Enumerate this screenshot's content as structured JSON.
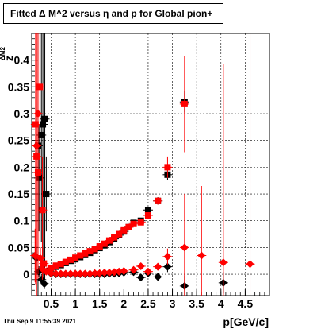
{
  "page": {
    "title": "Fitted Δ M^2 versus η and p for Global pion+",
    "timestamp": "Thu Sep  9 11:55:39 2021"
  },
  "chart_data": {
    "type": "scatter",
    "title": "Fitted Δ M^2 versus η and p for Global pion+",
    "xlabel": "p[GeV/c]",
    "ylabel": "z_{ΔM2}",
    "xlim": [
      0.1,
      5.0
    ],
    "ylim": [
      -0.04,
      0.45
    ],
    "grid": true,
    "x_ticks": [
      0.5,
      1,
      1.5,
      2,
      2.5,
      3,
      3.5,
      4,
      4.5
    ],
    "x_tick_labels": [
      "0.5",
      "1",
      "1.5",
      "2",
      "2.5",
      "3",
      "3.5",
      "4",
      "4.5"
    ],
    "y_ticks": [
      0,
      0.05,
      0.1,
      0.15,
      0.2,
      0.25,
      0.3,
      0.35,
      0.4
    ],
    "y_tick_labels": [
      "0",
      "0.05",
      "0.1",
      "0.15",
      "0.2",
      "0.25",
      "0.3",
      "0.35",
      "0.4"
    ],
    "series": [
      {
        "marker": "square",
        "color": "#000000",
        "points": [
          {
            "x": 0.23,
            "y": 0.24,
            "err": 0.3
          },
          {
            "x": 0.25,
            "y": 0.18,
            "err": 0.1
          },
          {
            "x": 0.3,
            "y": 0.26,
            "err": 0.2
          },
          {
            "x": 0.33,
            "y": 0.28,
            "err": 0.3
          },
          {
            "x": 0.37,
            "y": 0.29,
            "err": 0.3
          },
          {
            "x": 0.4,
            "y": 0.15,
            "err": 0.07
          },
          {
            "x": 0.5,
            "y": 0.011,
            "err": 0.003
          },
          {
            "x": 0.6,
            "y": 0.014,
            "err": 0.003
          },
          {
            "x": 0.7,
            "y": 0.017,
            "err": 0.003
          },
          {
            "x": 0.8,
            "y": 0.021,
            "err": 0.003
          },
          {
            "x": 0.9,
            "y": 0.025,
            "err": 0.003
          },
          {
            "x": 1.0,
            "y": 0.028,
            "err": 0.003
          },
          {
            "x": 1.1,
            "y": 0.032,
            "err": 0.003
          },
          {
            "x": 1.2,
            "y": 0.036,
            "err": 0.003
          },
          {
            "x": 1.3,
            "y": 0.04,
            "err": 0.003
          },
          {
            "x": 1.4,
            "y": 0.045,
            "err": 0.003
          },
          {
            "x": 1.5,
            "y": 0.049,
            "err": 0.003
          },
          {
            "x": 1.6,
            "y": 0.054,
            "err": 0.003
          },
          {
            "x": 1.7,
            "y": 0.06,
            "err": 0.003
          },
          {
            "x": 1.8,
            "y": 0.066,
            "err": 0.003
          },
          {
            "x": 1.9,
            "y": 0.073,
            "err": 0.004
          },
          {
            "x": 2.0,
            "y": 0.08,
            "err": 0.004
          },
          {
            "x": 2.1,
            "y": 0.088,
            "err": 0.004
          },
          {
            "x": 2.2,
            "y": 0.096,
            "err": 0.004
          },
          {
            "x": 2.35,
            "y": 0.1,
            "err": 0.005
          },
          {
            "x": 2.5,
            "y": 0.12,
            "err": 0.006
          },
          {
            "x": 2.7,
            "y": 0.137,
            "err": 0.007
          },
          {
            "x": 2.9,
            "y": 0.186,
            "err": 0.01
          },
          {
            "x": 3.25,
            "y": 0.322,
            "err": 0.02
          }
        ]
      },
      {
        "marker": "square",
        "color": "#ff0000",
        "points": [
          {
            "x": 0.18,
            "y": 0.28,
            "err": 0.3
          },
          {
            "x": 0.2,
            "y": 0.22,
            "err": 0.3
          },
          {
            "x": 0.23,
            "y": 0.19,
            "err": 0.2
          },
          {
            "x": 0.27,
            "y": 0.35,
            "err": 0.3
          },
          {
            "x": 0.32,
            "y": 0.12,
            "err": 0.1
          },
          {
            "x": 0.35,
            "y": 0.02,
            "err": 0.03
          },
          {
            "x": 0.5,
            "y": 0.012,
            "err": 0.003
          },
          {
            "x": 0.6,
            "y": 0.016,
            "err": 0.003
          },
          {
            "x": 0.7,
            "y": 0.019,
            "err": 0.003
          },
          {
            "x": 0.8,
            "y": 0.023,
            "err": 0.003
          },
          {
            "x": 0.9,
            "y": 0.027,
            "err": 0.003
          },
          {
            "x": 1.0,
            "y": 0.031,
            "err": 0.003
          },
          {
            "x": 1.1,
            "y": 0.035,
            "err": 0.003
          },
          {
            "x": 1.2,
            "y": 0.039,
            "err": 0.003
          },
          {
            "x": 1.3,
            "y": 0.043,
            "err": 0.003
          },
          {
            "x": 1.4,
            "y": 0.047,
            "err": 0.003
          },
          {
            "x": 1.5,
            "y": 0.052,
            "err": 0.003
          },
          {
            "x": 1.6,
            "y": 0.057,
            "err": 0.003
          },
          {
            "x": 1.7,
            "y": 0.063,
            "err": 0.003
          },
          {
            "x": 1.8,
            "y": 0.069,
            "err": 0.003
          },
          {
            "x": 1.9,
            "y": 0.075,
            "err": 0.004
          },
          {
            "x": 2.0,
            "y": 0.082,
            "err": 0.004
          },
          {
            "x": 2.1,
            "y": 0.088,
            "err": 0.004
          },
          {
            "x": 2.2,
            "y": 0.094,
            "err": 0.004
          },
          {
            "x": 2.35,
            "y": 0.097,
            "err": 0.005
          },
          {
            "x": 2.5,
            "y": 0.11,
            "err": 0.006
          },
          {
            "x": 2.7,
            "y": 0.137,
            "err": 0.007
          },
          {
            "x": 2.9,
            "y": 0.2,
            "err": 0.02
          },
          {
            "x": 3.25,
            "y": 0.318,
            "err": 0.09
          }
        ]
      },
      {
        "marker": "diamond",
        "color": "#000000",
        "points": [
          {
            "x": 0.2,
            "y": 0.03,
            "err": 0.02
          },
          {
            "x": 0.25,
            "y": 0.005,
            "err": 0.01
          },
          {
            "x": 0.3,
            "y": -0.01,
            "err": 0.01
          },
          {
            "x": 0.36,
            "y": -0.018,
            "err": 0.01
          },
          {
            "x": 0.5,
            "y": 0.001,
            "err": 0.003
          },
          {
            "x": 0.6,
            "y": 0.0,
            "err": 0.003
          },
          {
            "x": 0.7,
            "y": 0.0,
            "err": 0.003
          },
          {
            "x": 0.8,
            "y": 0.0,
            "err": 0.003
          },
          {
            "x": 0.9,
            "y": 0.0,
            "err": 0.003
          },
          {
            "x": 1.0,
            "y": 0.0,
            "err": 0.003
          },
          {
            "x": 1.1,
            "y": 0.0,
            "err": 0.003
          },
          {
            "x": 1.2,
            "y": 0.0,
            "err": 0.003
          },
          {
            "x": 1.3,
            "y": 0.0,
            "err": 0.003
          },
          {
            "x": 1.4,
            "y": 0.0,
            "err": 0.003
          },
          {
            "x": 1.5,
            "y": 0.0,
            "err": 0.003
          },
          {
            "x": 1.6,
            "y": 0.0,
            "err": 0.003
          },
          {
            "x": 1.7,
            "y": 0.001,
            "err": 0.003
          },
          {
            "x": 1.8,
            "y": 0.001,
            "err": 0.003
          },
          {
            "x": 1.9,
            "y": 0.002,
            "err": 0.003
          },
          {
            "x": 2.0,
            "y": 0.003,
            "err": 0.003
          },
          {
            "x": 2.2,
            "y": 0.004,
            "err": 0.004
          },
          {
            "x": 2.35,
            "y": -0.006,
            "err": 0.005
          },
          {
            "x": 2.5,
            "y": 0.002,
            "err": 0.006
          },
          {
            "x": 2.7,
            "y": -0.005,
            "err": 0.007
          },
          {
            "x": 2.9,
            "y": 0.014,
            "err": 0.01
          },
          {
            "x": 3.25,
            "y": -0.022,
            "err": 0.02
          },
          {
            "x": 4.05,
            "y": -0.016,
            "err": 0.02
          }
        ]
      },
      {
        "marker": "diamond",
        "color": "#ff0000",
        "points": [
          {
            "x": 0.17,
            "y": 0.035,
            "err": 0.05
          },
          {
            "x": 0.2,
            "y": 0.24,
            "err": 0.3
          },
          {
            "x": 0.23,
            "y": 0.3,
            "err": 0.3
          },
          {
            "x": 0.28,
            "y": 0.03,
            "err": 0.02
          },
          {
            "x": 0.32,
            "y": 0.01,
            "err": 0.02
          },
          {
            "x": 0.4,
            "y": 0.005,
            "err": 0.005
          },
          {
            "x": 0.5,
            "y": 0.002,
            "err": 0.003
          },
          {
            "x": 0.6,
            "y": 0.001,
            "err": 0.003
          },
          {
            "x": 0.7,
            "y": 0.001,
            "err": 0.003
          },
          {
            "x": 0.8,
            "y": 0.001,
            "err": 0.003
          },
          {
            "x": 0.9,
            "y": 0.001,
            "err": 0.003
          },
          {
            "x": 1.0,
            "y": 0.001,
            "err": 0.003
          },
          {
            "x": 1.1,
            "y": 0.001,
            "err": 0.003
          },
          {
            "x": 1.2,
            "y": 0.001,
            "err": 0.003
          },
          {
            "x": 1.3,
            "y": 0.001,
            "err": 0.003
          },
          {
            "x": 1.4,
            "y": 0.002,
            "err": 0.003
          },
          {
            "x": 1.5,
            "y": 0.002,
            "err": 0.003
          },
          {
            "x": 1.6,
            "y": 0.003,
            "err": 0.003
          },
          {
            "x": 1.7,
            "y": 0.003,
            "err": 0.003
          },
          {
            "x": 1.8,
            "y": 0.004,
            "err": 0.003
          },
          {
            "x": 1.9,
            "y": 0.005,
            "err": 0.003
          },
          {
            "x": 2.0,
            "y": 0.006,
            "err": 0.003
          },
          {
            "x": 2.2,
            "y": 0.008,
            "err": 0.004
          },
          {
            "x": 2.35,
            "y": 0.015,
            "err": 0.005
          },
          {
            "x": 2.5,
            "y": 0.005,
            "err": 0.006
          },
          {
            "x": 2.7,
            "y": 0.014,
            "err": 0.007
          },
          {
            "x": 2.9,
            "y": 0.033,
            "err": 0.015
          },
          {
            "x": 3.25,
            "y": 0.05,
            "err": 0.1
          },
          {
            "x": 3.6,
            "y": 0.035,
            "err": 0.13
          },
          {
            "x": 4.05,
            "y": 0.022,
            "err": 0.37
          },
          {
            "x": 4.6,
            "y": 0.019,
            "err": 0.5
          }
        ]
      }
    ]
  }
}
